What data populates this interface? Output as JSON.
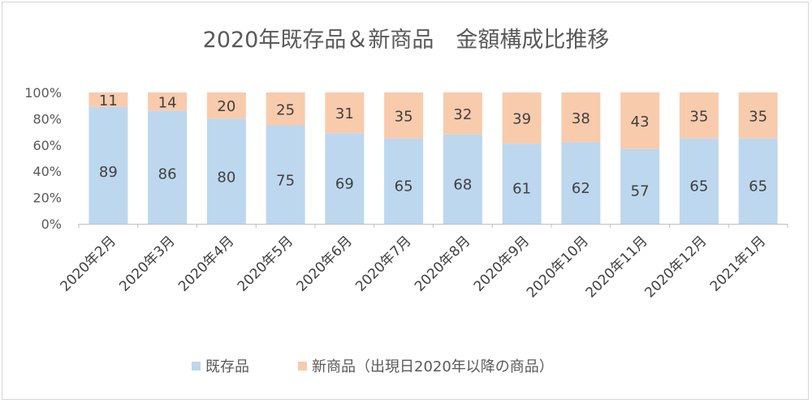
{
  "chart_data": {
    "type": "bar",
    "stacked": "percent",
    "title": "2020年既存品＆新商品　金額構成比推移",
    "categories": [
      "2020年2月",
      "2020年3月",
      "2020年4月",
      "2020年5月",
      "2020年6月",
      "2020年7月",
      "2020年8月",
      "2020年9月",
      "2020年10月",
      "2020年11月",
      "2020年12月",
      "2021年1月"
    ],
    "series": [
      {
        "name": "既存品",
        "color": "#BDD7EE",
        "values": [
          89,
          86,
          80,
          75,
          69,
          65,
          68,
          61,
          62,
          57,
          65,
          65
        ]
      },
      {
        "name": "新商品（出現日2020年以降の商品）",
        "color": "#F8CBAD",
        "values": [
          11,
          14,
          20,
          25,
          31,
          35,
          32,
          39,
          38,
          43,
          35,
          35
        ]
      }
    ],
    "ylim": [
      0,
      100
    ],
    "yticks": [
      "0%",
      "20%",
      "40%",
      "60%",
      "80%",
      "100%"
    ],
    "grid": false,
    "legend": "bottom"
  }
}
